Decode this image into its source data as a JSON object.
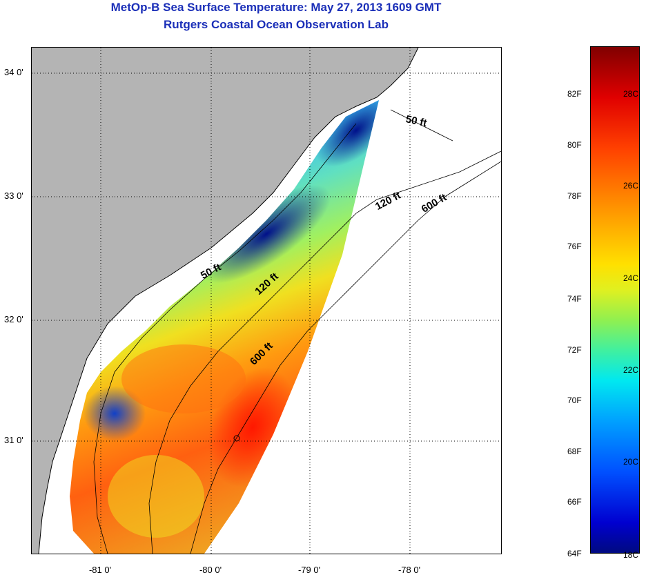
{
  "title": {
    "line1": "MetOp-B Sea Surface Temperature:  May 27, 2013 1609 GMT",
    "line2": "Rutgers Coastal Ocean Observation Lab"
  },
  "map": {
    "lat_labels": [
      "34 0'",
      "33 0'",
      "32 0'",
      "31 0'"
    ],
    "lon_labels": [
      "-81 0'",
      "-80 0'",
      "-79 0'",
      "-78 0'"
    ],
    "contour_labels": [
      "50 ft",
      "120 ft",
      "600 ft",
      "50 ft",
      "120 ft",
      "600 ft"
    ],
    "land_color": "#b4b4b4",
    "ocean_color": "#ffffff"
  },
  "colorbar": {
    "fahrenheit_labels": [
      "82F",
      "80F",
      "78F",
      "76F",
      "74F",
      "72F",
      "70F",
      "68F",
      "66F",
      "64F"
    ],
    "celsius_labels": [
      "28C",
      "26C",
      "24C",
      "22C",
      "20C",
      "18C"
    ],
    "colors": {
      "cold": "#000a80",
      "mid": "#90f050",
      "warm": "#e00000",
      "hot": "#800000"
    }
  }
}
